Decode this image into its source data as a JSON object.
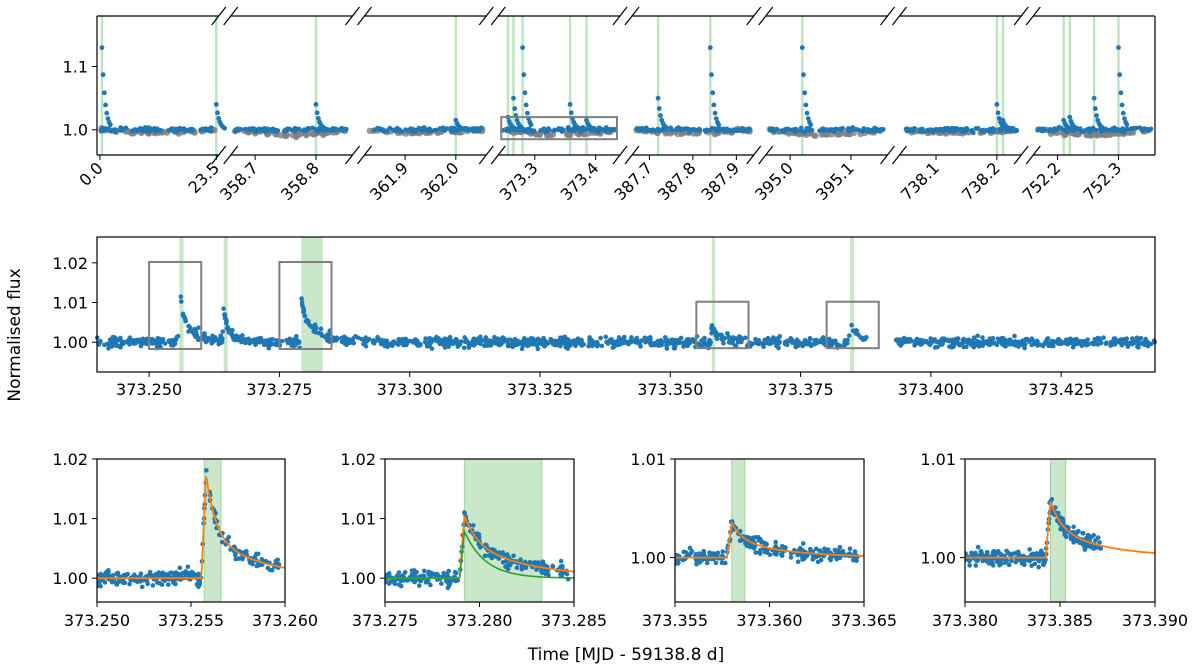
{
  "colors": {
    "data": "#1f77b4",
    "background_data": "#808080",
    "flare_band": "#2ca02c",
    "model_total": "#ff7f0e",
    "model_component": "#2ca02c",
    "zoom_box": "#808080"
  },
  "labels": {
    "ylabel": "Normalised flux",
    "xlabel": "Time [MJD - 59138.8 d]"
  },
  "chart_data": [
    {
      "id": "top",
      "type": "scatter",
      "broken_axis": true,
      "ylim": [
        0.96,
        1.18
      ],
      "yticks": [
        1.0,
        1.1
      ],
      "ytick_labels": [
        "1.0",
        "1.1"
      ],
      "segments": [
        {
          "xlim": [
            -0.6,
            24.0
          ],
          "xticks": [
            0.0,
            23.5
          ],
          "xtick_labels": [
            "0.0",
            "23.5"
          ],
          "flares": [
            0.4,
            23.5
          ]
        },
        {
          "xlim": [
            358.66,
            358.86
          ],
          "xticks": [
            358.7,
            358.8
          ],
          "xtick_labels": [
            "358.7",
            "358.8"
          ],
          "flares": [
            358.8
          ]
        },
        {
          "xlim": [
            361.82,
            362.06
          ],
          "xticks": [
            361.9,
            362.0
          ],
          "xtick_labels": [
            "361.9",
            "362.0"
          ],
          "flares": [
            362.0
          ]
        },
        {
          "xlim": [
            373.24,
            373.44
          ],
          "xticks": [
            373.3,
            373.4
          ],
          "xtick_labels": [
            "373.3",
            "373.4"
          ],
          "flares": [
            373.256,
            373.265,
            373.28,
            373.358,
            373.385
          ]
        },
        {
          "xlim": [
            387.66,
            387.94
          ],
          "xticks": [
            387.7,
            387.8,
            387.9
          ],
          "xtick_labels": [
            "387.7",
            "387.8",
            "387.9"
          ],
          "flares": [
            387.72,
            387.84
          ]
        },
        {
          "xlim": [
            394.96,
            395.16
          ],
          "xticks": [
            395.0,
            395.1
          ],
          "xtick_labels": [
            "395.0",
            "395.1"
          ],
          "flares": [
            395.02
          ]
        },
        {
          "xlim": [
            738.04,
            738.24
          ],
          "xticks": [
            738.1,
            738.2
          ],
          "xtick_labels": [
            "738.1",
            "738.2"
          ],
          "flares": [
            738.2,
            738.21
          ]
        },
        {
          "xlim": [
            752.16,
            752.36
          ],
          "xticks": [
            752.2,
            752.3
          ],
          "xtick_labels": [
            "752.2",
            "752.3"
          ],
          "flares": [
            752.21,
            752.22,
            752.26,
            752.3
          ]
        }
      ],
      "zoom_box": {
        "xlim": [
          373.24,
          373.44
        ],
        "ylim": [
          0.985,
          1.02
        ]
      }
    },
    {
      "id": "middle",
      "type": "scatter",
      "xlim": [
        373.24,
        373.443
      ],
      "ylim": [
        0.9925,
        1.0265
      ],
      "xticks": [
        373.25,
        373.275,
        373.3,
        373.325,
        373.35,
        373.375,
        373.4,
        373.425
      ],
      "xtick_labels": [
        "373.250",
        "373.275",
        "373.300",
        "373.325",
        "373.350",
        "373.375",
        "373.400",
        "373.425"
      ],
      "yticks": [
        1.0,
        1.01,
        1.02
      ],
      "ytick_labels": [
        "1.00",
        "1.01",
        "1.02"
      ],
      "gap": [
        373.388,
        373.393
      ],
      "flares": [
        {
          "t0": 373.2558,
          "t1": 373.2566
        },
        {
          "t0": 373.2643,
          "t1": 373.2651
        },
        {
          "t0": 373.2792,
          "t1": 373.2833
        },
        {
          "t0": 373.358,
          "t1": 373.3586
        },
        {
          "t0": 373.3845,
          "t1": 373.3853
        }
      ],
      "zoom_boxes": [
        {
          "xlim": [
            373.25,
            373.26
          ],
          "ylim": [
            0.9983,
            1.0202
          ]
        },
        {
          "xlim": [
            373.275,
            373.285
          ],
          "ylim": [
            0.9983,
            1.0202
          ]
        },
        {
          "xlim": [
            373.355,
            373.365
          ],
          "ylim": [
            0.9985,
            1.0102
          ]
        },
        {
          "xlim": [
            373.38,
            373.39
          ],
          "ylim": [
            0.9985,
            1.0102
          ]
        }
      ]
    },
    {
      "id": "flare1",
      "type": "scatter",
      "xlim": [
        373.25,
        373.26
      ],
      "ylim": [
        0.996,
        1.02
      ],
      "xticks": [
        373.25,
        373.255,
        373.26
      ],
      "xtick_labels": [
        "373.250",
        "373.255",
        "373.260"
      ],
      "yticks": [
        1.0,
        1.01,
        1.02
      ],
      "ytick_labels": [
        "1.00",
        "1.01",
        "1.02"
      ],
      "band": [
        373.2557,
        373.2566
      ],
      "model": {
        "t0": 373.2558,
        "amp": 0.0175,
        "tau": 0.0005,
        "tau2": 0.003,
        "frac": 0.6
      },
      "two_components": false
    },
    {
      "id": "flare2",
      "type": "scatter",
      "xlim": [
        373.275,
        373.285
      ],
      "ylim": [
        0.996,
        1.02
      ],
      "xticks": [
        373.275,
        373.28,
        373.285
      ],
      "xtick_labels": [
        "373.275",
        "373.280",
        "373.285"
      ],
      "yticks": [
        1.0,
        1.01,
        1.02
      ],
      "ytick_labels": [
        "1.00",
        "1.01",
        "1.02"
      ],
      "band": [
        373.2792,
        373.2833
      ],
      "model": {
        "t0": 373.2792,
        "amp": 0.0105,
        "tau": 0.0007,
        "tau2": 0.0035,
        "frac": 0.45
      },
      "two_components": true
    },
    {
      "id": "flare3",
      "type": "scatter",
      "xlim": [
        373.355,
        373.365
      ],
      "ylim": [
        0.9955,
        1.01
      ],
      "xticks": [
        373.355,
        373.36,
        373.365
      ],
      "xtick_labels": [
        "373.355",
        "373.360",
        "373.365"
      ],
      "yticks": [
        1.0,
        1.01
      ],
      "ytick_labels": [
        "1.00",
        "1.01"
      ],
      "band": [
        373.358,
        373.3587
      ],
      "model": {
        "t0": 373.358,
        "amp": 0.0035,
        "tau": 0.0006,
        "tau2": 0.003,
        "frac": 0.5
      },
      "two_components": false
    },
    {
      "id": "flare4",
      "type": "scatter",
      "xlim": [
        373.38,
        373.39
      ],
      "ylim": [
        0.9955,
        1.01
      ],
      "xticks": [
        373.38,
        373.385,
        373.39
      ],
      "xtick_labels": [
        "373.380",
        "373.385",
        "373.390"
      ],
      "yticks": [
        1.0,
        1.01
      ],
      "ytick_labels": [
        "1.00",
        "1.01"
      ],
      "band": [
        373.3845,
        373.3853
      ],
      "model": {
        "t0": 373.3845,
        "amp": 0.0057,
        "tau": 0.0006,
        "tau2": 0.003,
        "frac": 0.5
      },
      "two_components": false
    }
  ]
}
